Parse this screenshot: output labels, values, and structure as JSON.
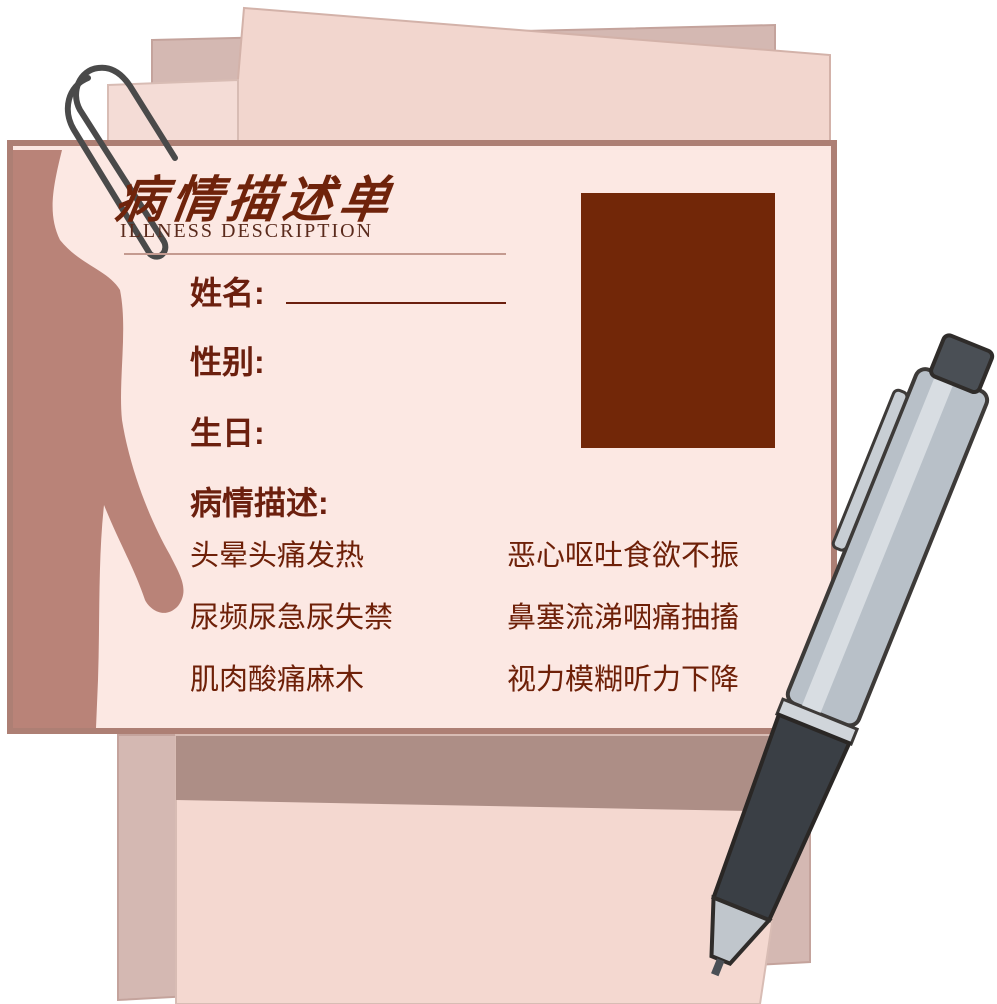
{
  "card": {
    "title_cn": "病情描述单",
    "title_en": "ILLNESS DESCRIPTION",
    "fields": {
      "name_label": "姓名:",
      "gender_label": "性别:",
      "birthday_label": "生日:",
      "description_label": "病情描述:"
    },
    "symptoms_left": [
      "头晕头痛发热",
      "尿频尿急尿失禁",
      "肌肉酸痛麻木"
    ],
    "symptoms_right": [
      "恶心呕吐食欲不振",
      "鼻塞流涕咽痛抽搐",
      "视力模糊听力下降"
    ]
  },
  "colors": {
    "card_bg": "#fce8e3",
    "card_border": "#ad7f74",
    "text_dark_red": "#6b1f0e",
    "photo_box": "#722708",
    "silhouette": "#b98378",
    "paper_back": "#f0d4cc",
    "pen_body": "#b8c0c8",
    "pen_grip": "#3a3f45"
  },
  "icons": [
    "paperclip-icon",
    "pen-icon",
    "body-silhouette"
  ]
}
